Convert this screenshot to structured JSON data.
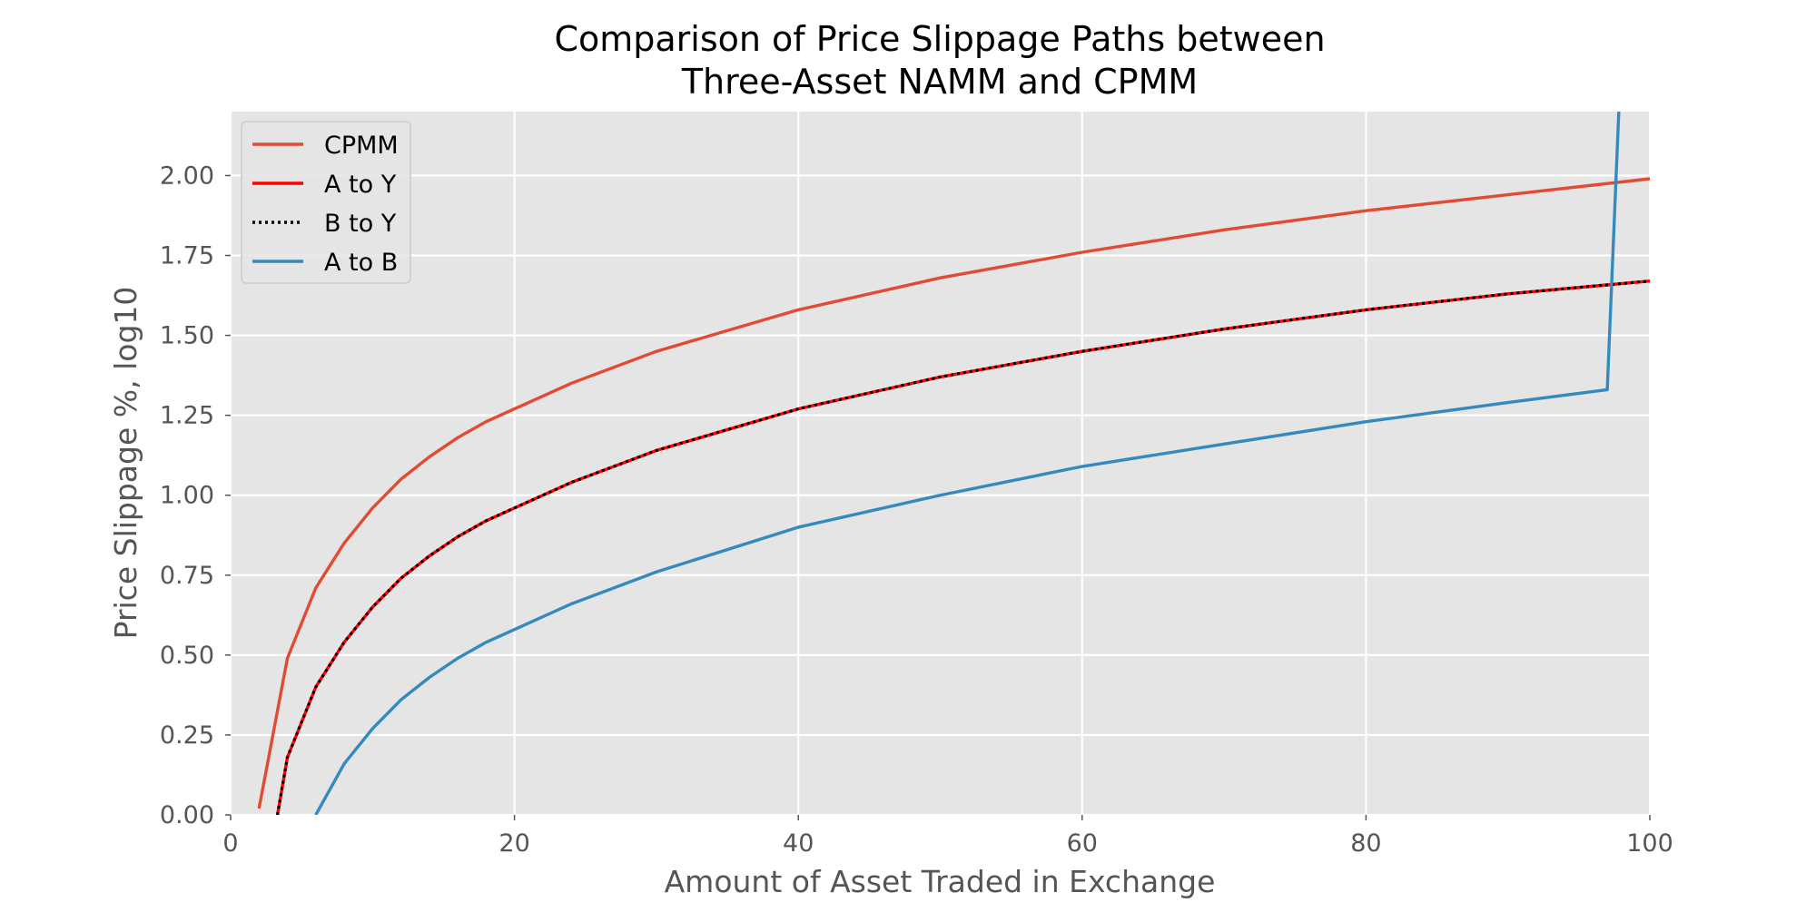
{
  "chart_data": {
    "type": "line",
    "title": "Comparison of Price Slippage Paths between\nThree-Asset NAMM and CPMM",
    "xlabel": "Amount of Asset Traded in Exchange",
    "ylabel": "Price Slippage %, log10",
    "xlim": [
      0,
      100
    ],
    "ylim": [
      0,
      2.2
    ],
    "xticks": [
      0,
      20,
      40,
      60,
      80,
      100
    ],
    "xtick_labels": [
      "0",
      "20",
      "40",
      "60",
      "80",
      "100"
    ],
    "yticks": [
      0,
      0.25,
      0.5,
      0.75,
      1.0,
      1.25,
      1.5,
      1.75,
      2.0
    ],
    "ytick_labels": [
      "0.00",
      "0.25",
      "0.50",
      "0.75",
      "1.00",
      "1.25",
      "1.50",
      "1.75",
      "2.00"
    ],
    "grid": true,
    "legend_position": "top-left",
    "background": "#e5e5e5",
    "series": [
      {
        "name": "CPMM",
        "color": "#e24a33",
        "style": "solid",
        "x": [
          2,
          4,
          6,
          8,
          10,
          12,
          14,
          16,
          18,
          20,
          24,
          30,
          40,
          50,
          60,
          70,
          80,
          90,
          100
        ],
        "values": [
          0.02,
          0.49,
          0.71,
          0.85,
          0.96,
          1.05,
          1.12,
          1.18,
          1.23,
          1.27,
          1.35,
          1.45,
          1.58,
          1.68,
          1.76,
          1.83,
          1.89,
          1.94,
          1.99
        ]
      },
      {
        "name": "A to Y",
        "color": "#ff0000",
        "style": "solid",
        "x": [
          3.3,
          4,
          6,
          8,
          10,
          12,
          14,
          16,
          18,
          20,
          24,
          30,
          40,
          50,
          60,
          70,
          80,
          90,
          100
        ],
        "values": [
          0.0,
          0.18,
          0.4,
          0.54,
          0.65,
          0.74,
          0.81,
          0.87,
          0.92,
          0.96,
          1.04,
          1.14,
          1.27,
          1.37,
          1.45,
          1.52,
          1.58,
          1.63,
          1.67
        ]
      },
      {
        "name": "B to Y",
        "color": "#000000",
        "style": "dotted",
        "x": [
          3.3,
          4,
          6,
          8,
          10,
          12,
          14,
          16,
          18,
          20,
          24,
          30,
          40,
          50,
          60,
          70,
          80,
          90,
          100
        ],
        "values": [
          0.0,
          0.18,
          0.4,
          0.54,
          0.65,
          0.74,
          0.81,
          0.87,
          0.92,
          0.96,
          1.04,
          1.14,
          1.27,
          1.37,
          1.45,
          1.52,
          1.58,
          1.63,
          1.67
        ]
      },
      {
        "name": "A to B",
        "color": "#348abd",
        "style": "solid",
        "x": [
          6,
          8,
          10,
          12,
          14,
          16,
          18,
          20,
          24,
          30,
          40,
          50,
          60,
          70,
          80,
          90,
          97,
          98
        ],
        "values": [
          0.0,
          0.16,
          0.27,
          0.36,
          0.43,
          0.49,
          0.54,
          0.58,
          0.66,
          0.76,
          0.9,
          1.0,
          1.09,
          1.16,
          1.23,
          1.29,
          1.33,
          2.4
        ]
      }
    ]
  }
}
